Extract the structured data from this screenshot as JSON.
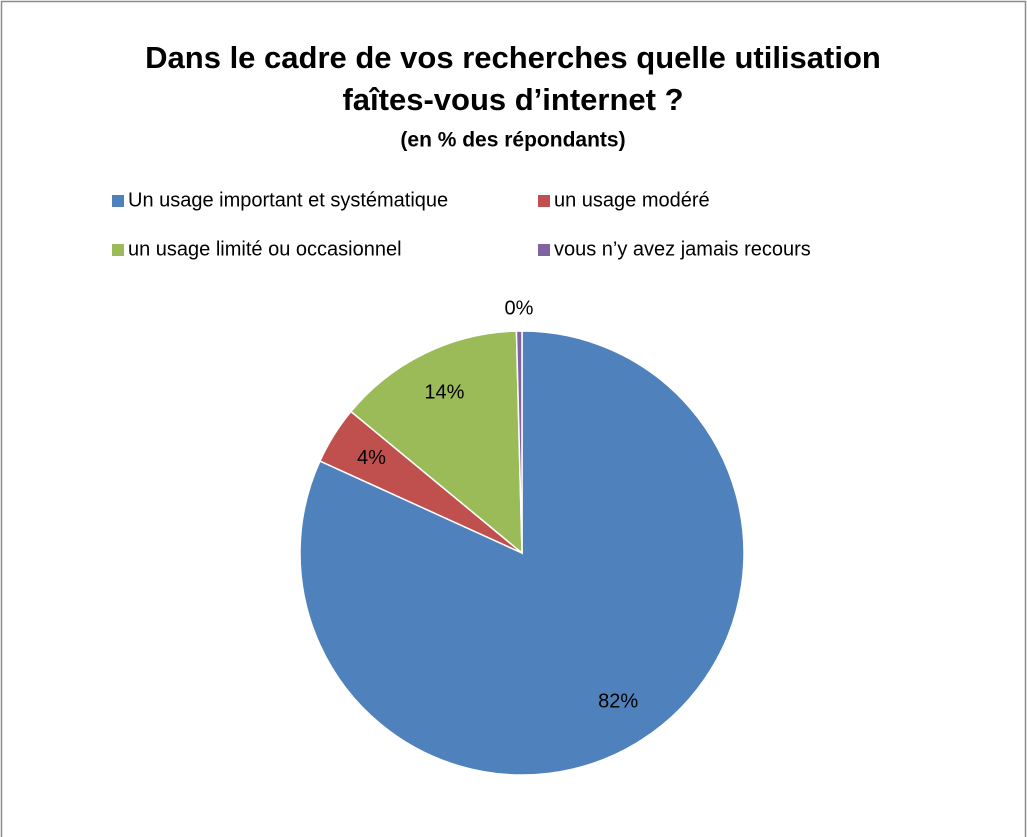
{
  "chart_data": {
    "type": "pie",
    "title": "Dans le cadre de vos recherches quelle utilisation",
    "title_line2": "faîtes-vous d’internet ?",
    "subtitle": "(en % des répondants)",
    "categories": [
      "Un usage important et systématique",
      "un usage modéré",
      "un usage limité ou occasionnel",
      "vous n’y avez jamais recours"
    ],
    "values": [
      81.8,
      4.2,
      13.6,
      0.4
    ],
    "value_labels": [
      "82%",
      "4%",
      "14%",
      "0%"
    ],
    "colors": [
      "#4f81bd",
      "#c0504d",
      "#9bbb59",
      "#8064a2"
    ],
    "legend": "top"
  }
}
